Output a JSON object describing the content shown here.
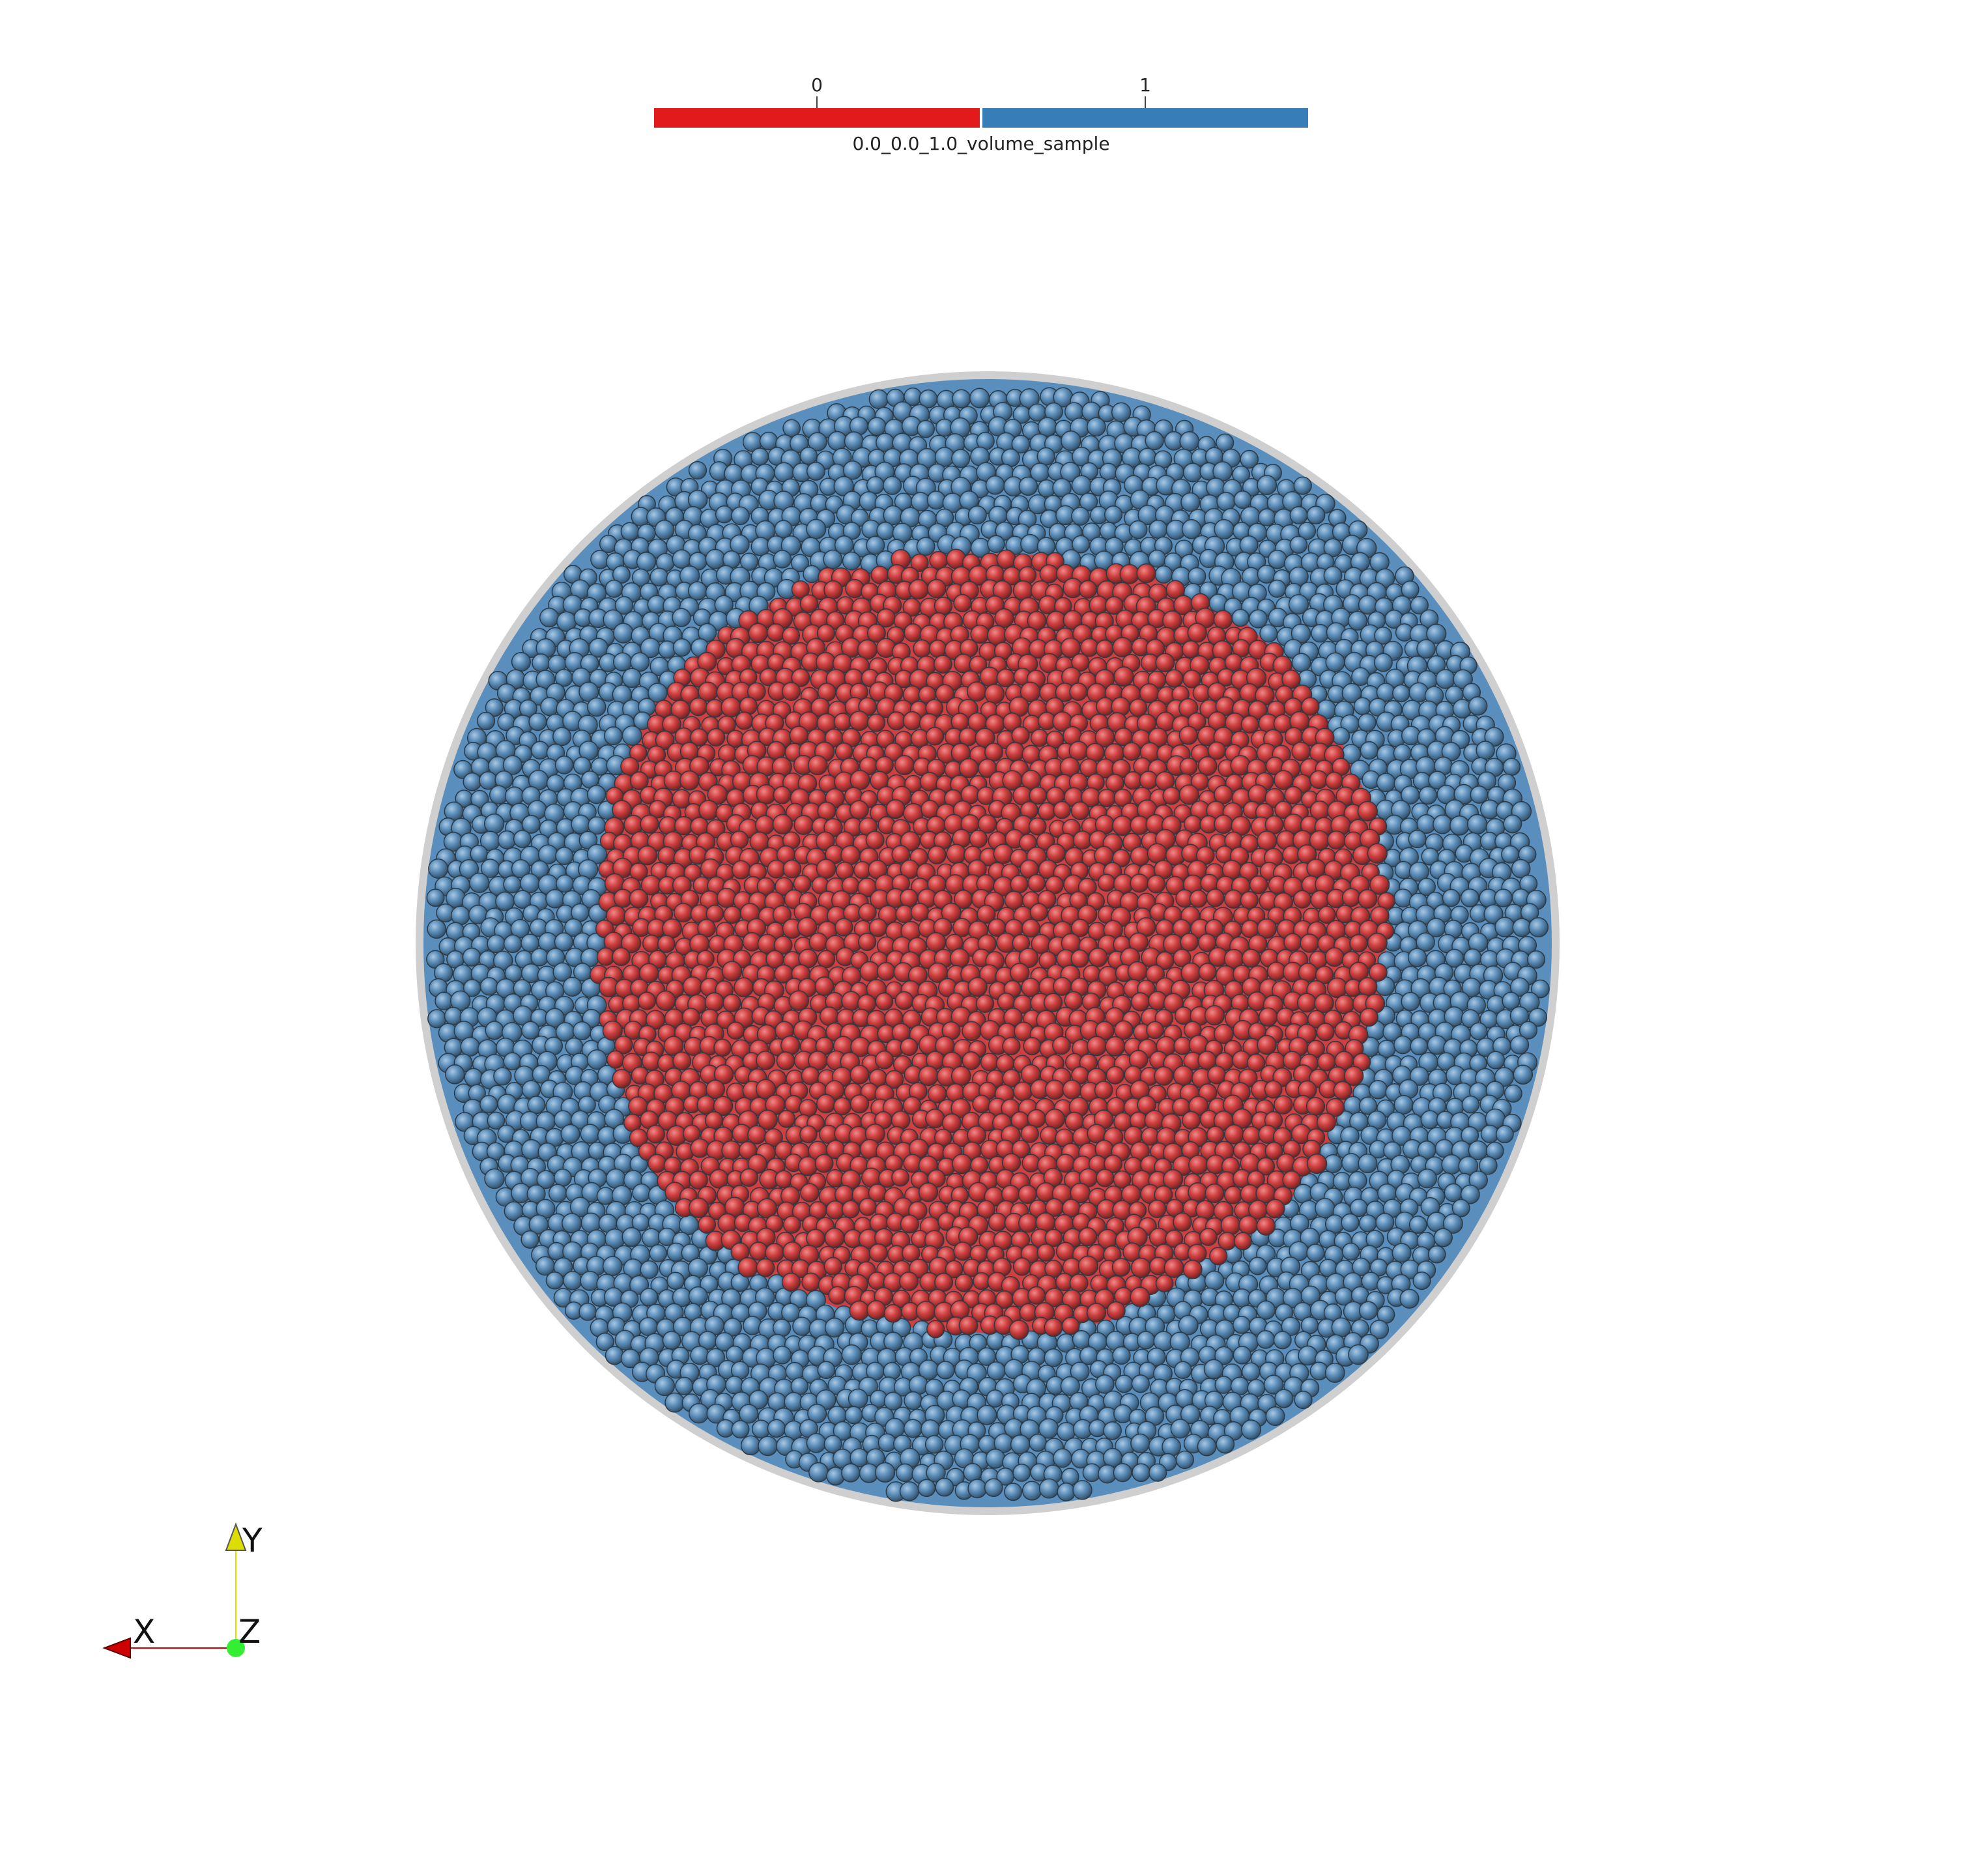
{
  "legend": {
    "title": "0.0_0.0_1.0_volume_sample",
    "categories": [
      {
        "label": "0",
        "color": "#e31a1c"
      },
      {
        "label": "1",
        "color": "#377eb8"
      }
    ]
  },
  "axes": {
    "x_label": "X",
    "y_label": "Y",
    "z_label": "Z",
    "x_color": "#cc0000",
    "y_color": "#dddd00",
    "z_color": "#33ee33"
  },
  "particles": {
    "outer_color": "#5a8fbd",
    "inner_color": "#d04040",
    "container_color": "#cfcfcf"
  }
}
